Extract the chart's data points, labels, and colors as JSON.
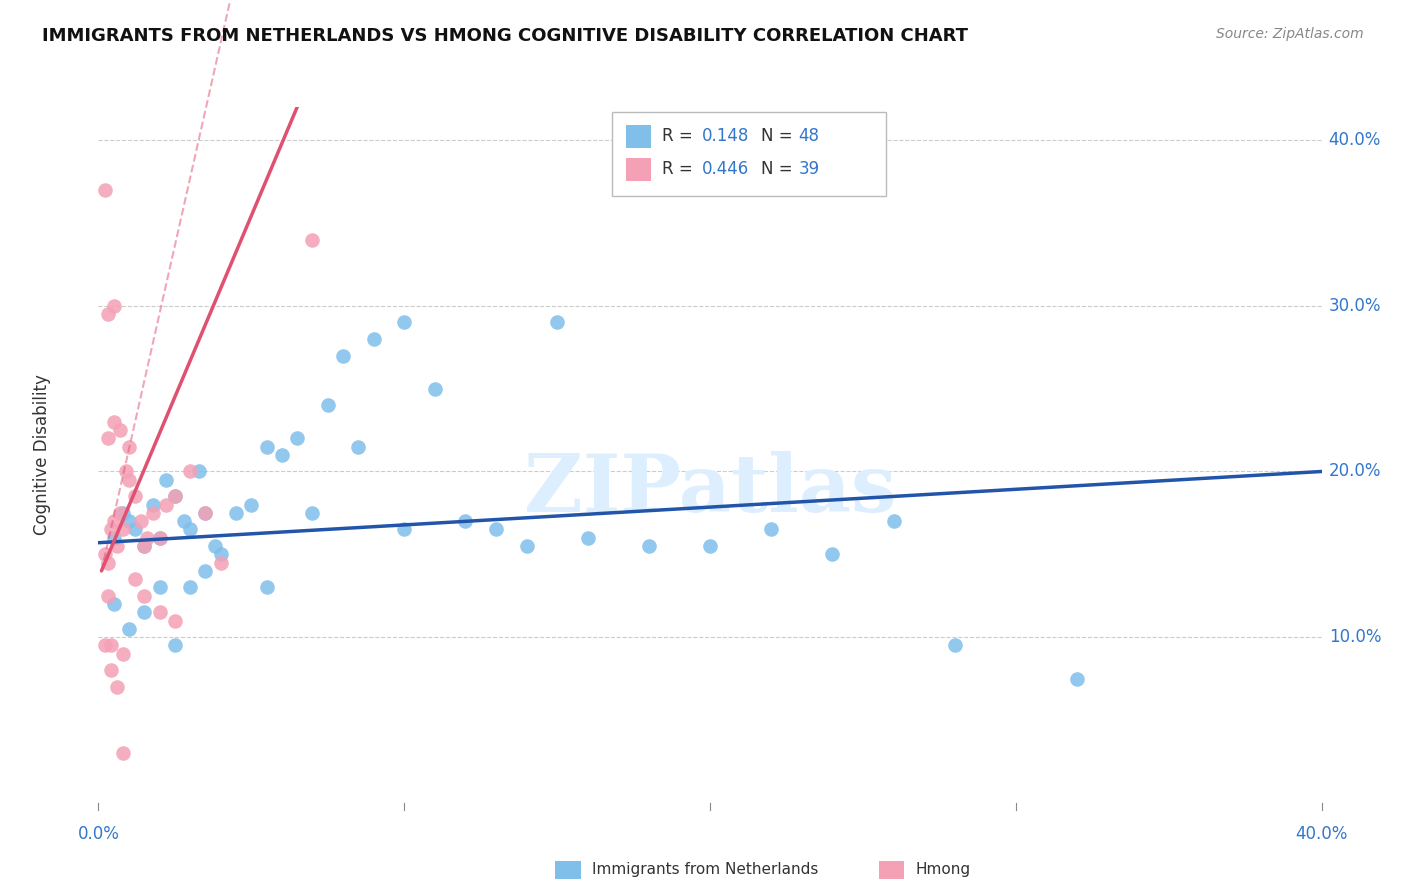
{
  "title": "IMMIGRANTS FROM NETHERLANDS VS HMONG COGNITIVE DISABILITY CORRELATION CHART",
  "source": "Source: ZipAtlas.com",
  "ylabel": "Cognitive Disability",
  "xlim": [
    0.0,
    0.4
  ],
  "ylim": [
    0.0,
    0.42
  ],
  "R_netherlands": 0.148,
  "N_netherlands": 48,
  "R_hmong": 0.446,
  "N_hmong": 39,
  "blue_color": "#7fbfea",
  "pink_color": "#f4a0b5",
  "blue_line_color": "#2255aa",
  "pink_line_color": "#e05070",
  "text_color": "#3377cc",
  "background_color": "#ffffff",
  "grid_color": "#cccccc",
  "watermark_color": "#ddeeff",
  "netherlands_x": [
    0.005,
    0.008,
    0.01,
    0.012,
    0.015,
    0.018,
    0.02,
    0.022,
    0.025,
    0.028,
    0.03,
    0.033,
    0.035,
    0.038,
    0.04,
    0.045,
    0.05,
    0.055,
    0.06,
    0.07,
    0.075,
    0.08,
    0.09,
    0.1,
    0.11,
    0.12,
    0.13,
    0.14,
    0.16,
    0.18,
    0.2,
    0.22,
    0.24,
    0.26,
    0.03,
    0.055,
    0.1,
    0.28,
    0.005,
    0.01,
    0.015,
    0.02,
    0.025,
    0.035,
    0.065,
    0.085,
    0.15,
    0.32
  ],
  "netherlands_y": [
    0.16,
    0.175,
    0.17,
    0.165,
    0.155,
    0.18,
    0.16,
    0.195,
    0.185,
    0.17,
    0.165,
    0.2,
    0.175,
    0.155,
    0.15,
    0.175,
    0.18,
    0.215,
    0.21,
    0.175,
    0.24,
    0.27,
    0.28,
    0.29,
    0.25,
    0.17,
    0.165,
    0.155,
    0.16,
    0.155,
    0.155,
    0.165,
    0.15,
    0.17,
    0.13,
    0.13,
    0.165,
    0.095,
    0.12,
    0.105,
    0.115,
    0.13,
    0.095,
    0.14,
    0.22,
    0.215,
    0.29,
    0.075
  ],
  "hmong_x": [
    0.002,
    0.003,
    0.004,
    0.005,
    0.006,
    0.007,
    0.008,
    0.009,
    0.01,
    0.012,
    0.014,
    0.015,
    0.016,
    0.018,
    0.02,
    0.022,
    0.025,
    0.03,
    0.035,
    0.04,
    0.003,
    0.005,
    0.007,
    0.01,
    0.012,
    0.015,
    0.02,
    0.025,
    0.002,
    0.004,
    0.006,
    0.008,
    0.003,
    0.005,
    0.07,
    0.002,
    0.003,
    0.004,
    0.008
  ],
  "hmong_y": [
    0.15,
    0.145,
    0.165,
    0.17,
    0.155,
    0.175,
    0.165,
    0.2,
    0.195,
    0.185,
    0.17,
    0.155,
    0.16,
    0.175,
    0.16,
    0.18,
    0.185,
    0.2,
    0.175,
    0.145,
    0.22,
    0.23,
    0.225,
    0.215,
    0.135,
    0.125,
    0.115,
    0.11,
    0.095,
    0.095,
    0.07,
    0.09,
    0.295,
    0.3,
    0.34,
    0.37,
    0.125,
    0.08,
    0.03
  ]
}
